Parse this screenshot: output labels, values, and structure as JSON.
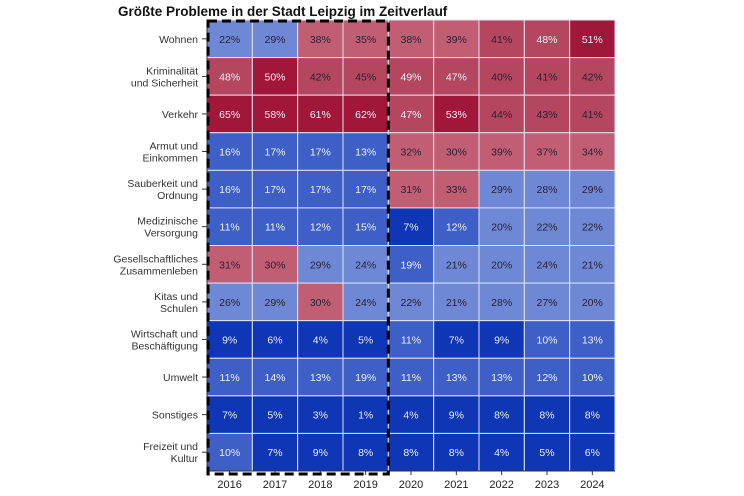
{
  "chart_data": {
    "type": "heatmap",
    "title": "Größte Probleme in der Stadt Leipzig im Zeitverlauf",
    "xlabel": "",
    "ylabel": "",
    "x": [
      "2016",
      "2017",
      "2018",
      "2019",
      "2020",
      "2021",
      "2022",
      "2023",
      "2024"
    ],
    "y": [
      [
        "Wohnen"
      ],
      [
        "Kriminalität",
        "und Sicherheit"
      ],
      [
        "Verkehr"
      ],
      [
        "Armut und",
        "Einkommen"
      ],
      [
        "Sauberkeit und",
        "Ordnung"
      ],
      [
        "Medizinische",
        "Versorgung"
      ],
      [
        "Gesellschaftliches",
        "Zusammenleben"
      ],
      [
        "Kitas und",
        "Schulen"
      ],
      [
        "Wirtschaft und",
        "Beschäftigung"
      ],
      [
        "Umwelt"
      ],
      [
        "Sonstiges"
      ],
      [
        "Freizeit und",
        "Kultur"
      ]
    ],
    "values": [
      [
        22,
        29,
        38,
        35,
        38,
        39,
        41,
        48,
        51
      ],
      [
        48,
        50,
        42,
        45,
        49,
        47,
        40,
        41,
        42
      ],
      [
        65,
        58,
        61,
        62,
        47,
        53,
        44,
        43,
        41
      ],
      [
        16,
        17,
        17,
        13,
        32,
        30,
        39,
        37,
        34
      ],
      [
        16,
        17,
        17,
        17,
        31,
        33,
        29,
        28,
        29
      ],
      [
        11,
        11,
        12,
        15,
        7,
        12,
        20,
        22,
        22
      ],
      [
        31,
        30,
        29,
        24,
        19,
        21,
        20,
        24,
        21
      ],
      [
        26,
        29,
        30,
        24,
        22,
        21,
        28,
        27,
        20
      ],
      [
        9,
        6,
        4,
        5,
        11,
        7,
        9,
        10,
        13
      ],
      [
        11,
        14,
        13,
        19,
        11,
        13,
        13,
        12,
        10
      ],
      [
        7,
        5,
        3,
        1,
        4,
        9,
        8,
        8,
        8
      ],
      [
        10,
        7,
        9,
        8,
        8,
        8,
        4,
        5,
        6
      ]
    ],
    "value_suffix": "%",
    "color_bins": [
      {
        "min": 50,
        "color": "#a1173a"
      },
      {
        "min": 40,
        "color": "#b4475f"
      },
      {
        "min": 30,
        "color": "#c15e74"
      },
      {
        "min": 20,
        "color": "#6e88d5"
      },
      {
        "min": 10,
        "color": "#3e60c6"
      },
      {
        "min": 0,
        "color": "#0f36b4"
      }
    ],
    "highlight_range": [
      "2016",
      "2019"
    ],
    "grid": false,
    "legend": "none"
  }
}
